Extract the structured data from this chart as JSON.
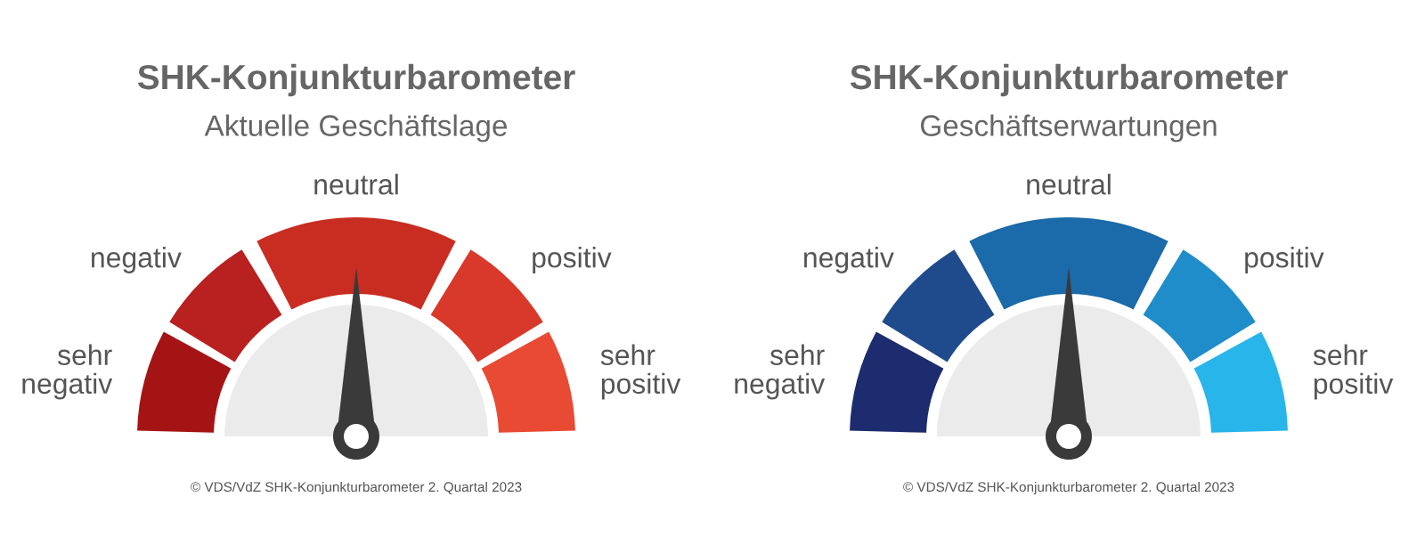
{
  "chart_data": [
    {
      "type": "donut",
      "title": "SHK-Konjunkturbarometer",
      "subtitle": "Aktuelle Geschäftslage",
      "categories": [
        "sehr negativ",
        "negativ",
        "neutral",
        "positiv",
        "sehr positiv"
      ],
      "values": [
        16.67,
        16.67,
        33.33,
        16.67,
        16.67
      ],
      "colors": [
        "#a51414",
        "#b92020",
        "#c92d22",
        "#d9392a",
        "#e84a34"
      ],
      "needle": "neutral",
      "annotations": [
        "© VDS/VdZ SHK-Konjunkturbarometer 2. Quartal 2023"
      ]
    },
    {
      "type": "donut",
      "title": "SHK-Konjunkturbarometer",
      "subtitle": "Geschäftserwartungen",
      "categories": [
        "sehr negativ",
        "negativ",
        "neutral",
        "positiv",
        "sehr positiv"
      ],
      "values": [
        16.67,
        16.67,
        33.33,
        16.67,
        16.67
      ],
      "colors": [
        "#1c2c6e",
        "#1f4a8c",
        "#1b6aa9",
        "#1f8dc9",
        "#27b5ea"
      ],
      "needle": "neutral",
      "annotations": [
        "© VDS/VdZ SHK-Konjunkturbarometer 2. Quartal 2023"
      ]
    }
  ]
}
